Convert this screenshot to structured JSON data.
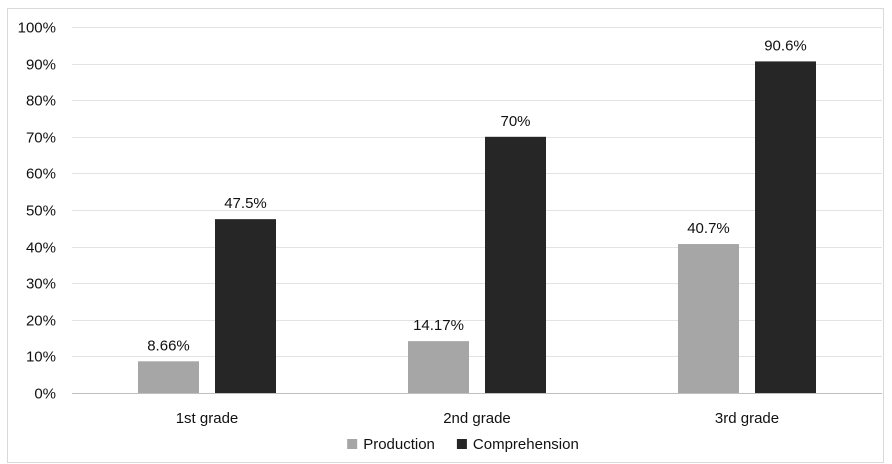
{
  "chart_data": {
    "type": "bar",
    "categories": [
      "1st grade",
      "2nd grade",
      "3rd grade"
    ],
    "series": [
      {
        "name": "Production",
        "values": [
          8.66,
          14.17,
          40.7
        ],
        "labels": [
          "8.66%",
          "14.17%",
          "40.7%"
        ],
        "color": "#a6a6a6"
      },
      {
        "name": "Comprehension",
        "values": [
          47.5,
          70,
          90.6
        ],
        "labels": [
          "47.5%",
          "70%",
          "90.6%"
        ],
        "color": "#262626"
      }
    ],
    "yticks": [
      "0%",
      "10%",
      "20%",
      "30%",
      "40%",
      "50%",
      "60%",
      "70%",
      "80%",
      "90%",
      "100%"
    ],
    "ylim": [
      0,
      100
    ],
    "grid": true,
    "legend": "bottom",
    "title": "",
    "xlabel": "",
    "ylabel": ""
  }
}
